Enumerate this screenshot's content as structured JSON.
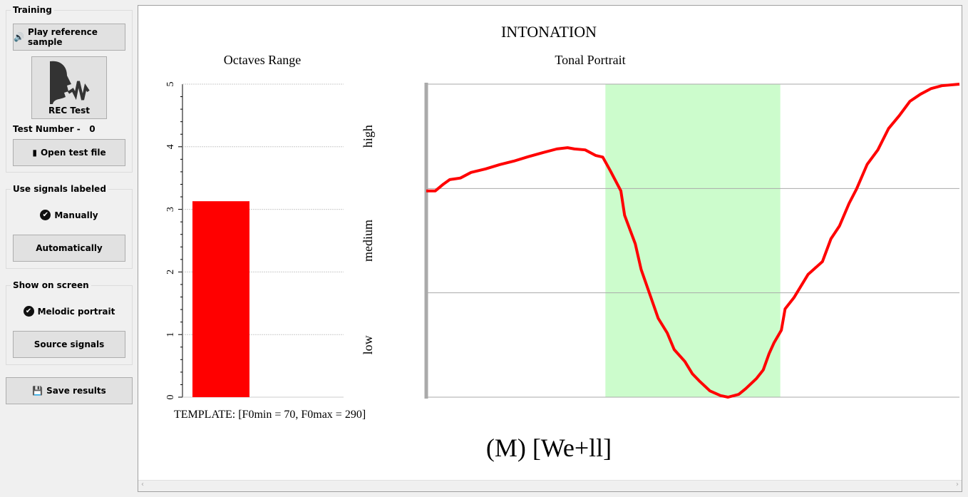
{
  "sidebar": {
    "training": {
      "title": "Training",
      "play_label": "Play reference sample",
      "rec_label": "REC Test",
      "test_number_label": "Test Number -",
      "test_number": "0",
      "open_label": "Open test file"
    },
    "signals": {
      "title": "Use signals labeled",
      "manual_label": "Manually",
      "auto_label": "Automatically"
    },
    "show": {
      "title": "Show on screen",
      "melodic_label": "Melodic portrait",
      "source_label": "Source signals"
    },
    "save_label": "Save results"
  },
  "main": {
    "title": "INTONATION",
    "template_text": "TEMPLATE: [F0min = 70, F0max = 290]",
    "utterance": "(M) [We+ll]"
  },
  "chart_data": [
    {
      "type": "bar",
      "title": "Octaves Range",
      "categories": [
        ""
      ],
      "values": [
        3.13
      ],
      "ylim": [
        0,
        5
      ],
      "yticks": [
        "0",
        "1",
        "2",
        "3",
        "4",
        "5"
      ],
      "color": "#ff0000",
      "grid": true
    },
    {
      "type": "line",
      "title": "Tonal Portrait",
      "band_labels": [
        "low",
        "medium",
        "high"
      ],
      "ylim": [
        0,
        1
      ],
      "xlim": [
        0,
        1
      ],
      "highlight": [
        0.336,
        0.664
      ],
      "highlight_color": "#ccfccc",
      "color": "#ff0000",
      "x": [
        0,
        0.017,
        0.031,
        0.044,
        0.064,
        0.084,
        0.111,
        0.138,
        0.164,
        0.191,
        0.218,
        0.245,
        0.265,
        0.278,
        0.298,
        0.318,
        0.331,
        0.345,
        0.365,
        0.372,
        0.392,
        0.403,
        0.419,
        0.435,
        0.452,
        0.465,
        0.485,
        0.499,
        0.512,
        0.532,
        0.552,
        0.566,
        0.586,
        0.599,
        0.619,
        0.632,
        0.643,
        0.652,
        0.666,
        0.673,
        0.69,
        0.716,
        0.743,
        0.759,
        0.775,
        0.793,
        0.807,
        0.827,
        0.847,
        0.867,
        0.887,
        0.907,
        0.927,
        0.947,
        0.967,
        1.0
      ],
      "y": [
        0.659,
        0.659,
        0.679,
        0.695,
        0.7,
        0.718,
        0.729,
        0.743,
        0.754,
        0.768,
        0.781,
        0.793,
        0.797,
        0.793,
        0.79,
        0.772,
        0.767,
        0.724,
        0.659,
        0.581,
        0.49,
        0.408,
        0.33,
        0.252,
        0.205,
        0.152,
        0.114,
        0.075,
        0.052,
        0.02,
        0.005,
        0,
        0.009,
        0.027,
        0.059,
        0.087,
        0.139,
        0.173,
        0.214,
        0.282,
        0.319,
        0.392,
        0.433,
        0.506,
        0.547,
        0.619,
        0.665,
        0.744,
        0.79,
        0.858,
        0.899,
        0.945,
        0.968,
        0.986,
        0.995,
        1.0
      ]
    }
  ]
}
